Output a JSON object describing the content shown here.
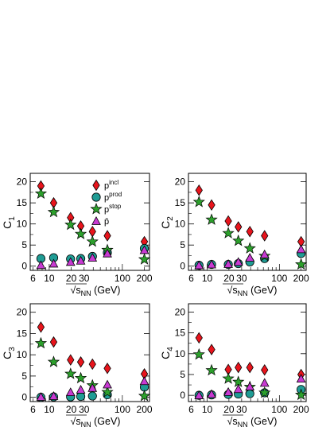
{
  "figure": {
    "shared_x_label": "√s_NN (GeV)",
    "x_scale": "log",
    "xlim": [
      5.5,
      235
    ],
    "x_ticks": [
      6,
      10,
      20,
      30,
      100,
      200
    ],
    "grid": false
  },
  "legend": {
    "placement": "top-center of panel C1",
    "entries": [
      {
        "key": "incl",
        "label": "p",
        "sup": "incl",
        "marker": "diamond",
        "color": "#e8141c"
      },
      {
        "key": "prod",
        "label": "p",
        "sup": "prod",
        "marker": "circle",
        "color": "#1f9c94"
      },
      {
        "key": "stop",
        "label": "p",
        "sup": "stop",
        "marker": "star",
        "color": "#2ca02c"
      },
      {
        "key": "pbar",
        "label": "p̄",
        "sup": "",
        "marker": "triangle",
        "color": "#c83ad2"
      }
    ]
  },
  "chart_data": [
    {
      "type": "scatter",
      "panel": "C1",
      "ylabel": "C1",
      "xlabel": "√s_NN (GeV)",
      "ylim": [
        -1,
        22
      ],
      "y_ticks": [
        0,
        5,
        10,
        15,
        20
      ],
      "x": [
        7.7,
        11.5,
        19.6,
        27,
        39,
        62.4,
        200
      ],
      "series": [
        {
          "name": "p incl",
          "values": [
            19.0,
            15.0,
            11.5,
            9.5,
            8.2,
            7.2,
            5.8
          ]
        },
        {
          "name": "p prod",
          "values": [
            1.8,
            2.0,
            1.7,
            1.8,
            2.3,
            3.2,
            4.2
          ]
        },
        {
          "name": "p stop",
          "values": [
            17.2,
            12.8,
            9.8,
            7.6,
            5.8,
            3.8,
            1.6
          ]
        },
        {
          "name": "p̄",
          "values": [
            0.25,
            0.6,
            1.0,
            1.3,
            2.0,
            3.0,
            3.8
          ]
        }
      ]
    },
    {
      "type": "scatter",
      "panel": "C2",
      "ylabel": "C2",
      "xlabel": "√s_NN (GeV)",
      "ylim": [
        -1,
        22
      ],
      "y_ticks": [
        0,
        5,
        10,
        15,
        20
      ],
      "x": [
        7.7,
        11.5,
        19.6,
        27,
        39,
        62.4,
        200
      ],
      "series": [
        {
          "name": "p incl",
          "values": [
            18.0,
            14.5,
            10.7,
            9.3,
            8.2,
            7.2,
            5.8
          ]
        },
        {
          "name": "p prod",
          "values": [
            0.2,
            0.4,
            0.4,
            0.6,
            1.0,
            1.8,
            3.0
          ]
        },
        {
          "name": "p stop",
          "values": [
            15.2,
            11.0,
            7.8,
            6.0,
            4.2,
            2.4,
            0.4
          ]
        },
        {
          "name": "p̄",
          "values": [
            0.2,
            0.4,
            0.5,
            1.0,
            2.0,
            2.8,
            4.0
          ]
        }
      ]
    },
    {
      "type": "scatter",
      "panel": "C3",
      "ylabel": "C3",
      "xlabel": "√s_NN (GeV)",
      "ylim": [
        -1,
        22
      ],
      "y_ticks": [
        0,
        5,
        10,
        15,
        20
      ],
      "x": [
        7.7,
        11.5,
        19.6,
        27,
        39,
        62.4,
        200
      ],
      "series": [
        {
          "name": "p incl",
          "values": [
            16.5,
            13.0,
            8.8,
            8.3,
            7.8,
            6.8,
            5.5
          ]
        },
        {
          "name": "p prod",
          "values": [
            0.0,
            0.1,
            0.1,
            0.2,
            0.3,
            0.6,
            2.4
          ]
        },
        {
          "name": "p stop",
          "values": [
            12.7,
            8.3,
            5.5,
            4.5,
            2.8,
            1.2,
            0.3
          ]
        },
        {
          "name": "p̄",
          "values": [
            0.1,
            0.3,
            1.2,
            1.8,
            2.2,
            3.0,
            3.8
          ]
        }
      ]
    },
    {
      "type": "scatter",
      "panel": "C4",
      "ylabel": "C4",
      "xlabel": "√s_NN (GeV)",
      "ylim": [
        -1.5,
        22
      ],
      "y_ticks": [
        0,
        5,
        10,
        15,
        20
      ],
      "x": [
        7.7,
        11.5,
        19.6,
        27,
        39,
        62.4,
        200
      ],
      "series": [
        {
          "name": "p incl",
          "values": [
            13.8,
            11.0,
            6.2,
            6.7,
            6.7,
            6.1,
            5.0
          ]
        },
        {
          "name": "p prod",
          "values": [
            0.0,
            0.1,
            0.2,
            0.3,
            0.4,
            0.6,
            1.4
          ]
        },
        {
          "name": "p stop",
          "values": [
            9.8,
            6.0,
            4.0,
            3.2,
            2.0,
            0.6,
            0.1
          ]
        },
        {
          "name": "p̄",
          "values": [
            0.0,
            0.3,
            0.8,
            1.5,
            2.1,
            3.0,
            4.0
          ]
        }
      ]
    }
  ]
}
